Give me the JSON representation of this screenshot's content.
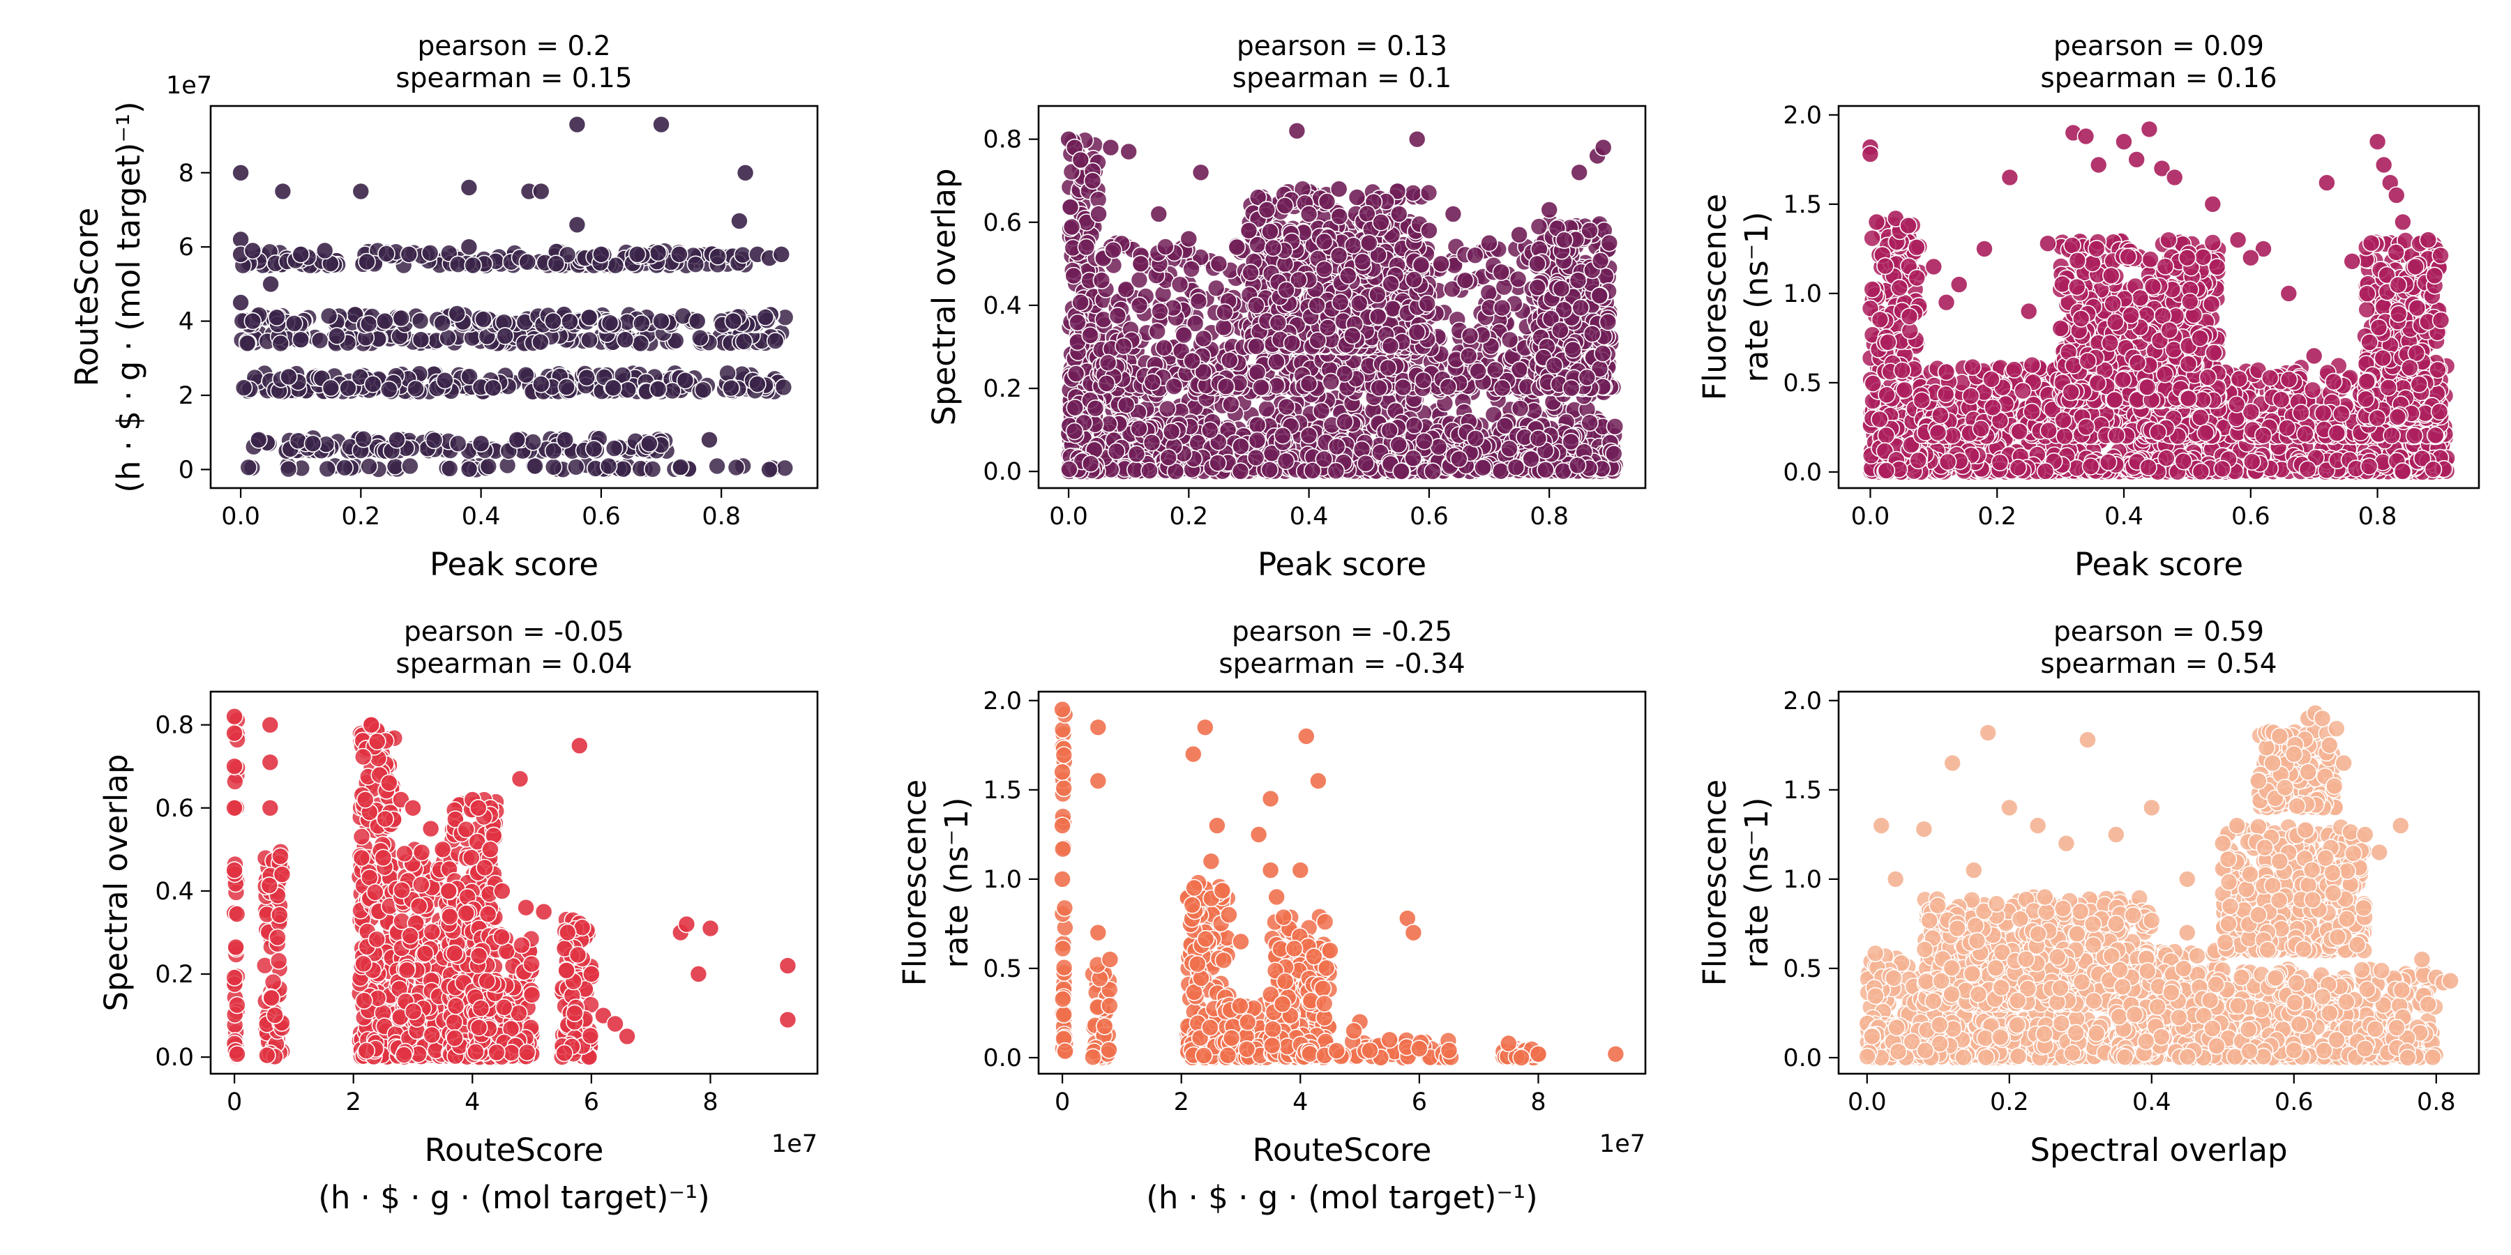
{
  "chart_data": [
    {
      "type": "scatter",
      "title": [
        "pearson = 0.2",
        "spearman = 0.15"
      ],
      "xlabel": [
        "Peak score"
      ],
      "ylabel": [
        "RouteScore",
        "(h · $ · g · (mol target)⁻¹)"
      ],
      "xlim": [
        -0.05,
        0.96
      ],
      "ylim": [
        -0.5,
        9.8
      ],
      "x_ticks": [
        0.0,
        0.2,
        0.4,
        0.6,
        0.8
      ],
      "x_tick_labels": [
        "0.0",
        "0.2",
        "0.4",
        "0.6",
        "0.8"
      ],
      "y_ticks": [
        0,
        2,
        4,
        6,
        8
      ],
      "y_tick_labels": [
        "0",
        "2",
        "4",
        "6",
        "8"
      ],
      "y_offset_label": "1e7",
      "x_offset_label": "",
      "grid": false,
      "color": "#3b2449",
      "points": {
        "x": [
          0.0,
          0.0,
          0.0,
          0.02,
          0.05,
          0.07,
          0.1,
          0.14,
          0.2,
          0.21,
          0.28,
          0.38,
          0.38,
          0.48,
          0.5,
          0.56,
          0.56,
          0.6,
          0.66,
          0.7,
          0.73,
          0.84,
          0.83,
          0.86,
          0.88,
          0.9,
          0.02,
          0.06,
          0.1,
          0.16,
          0.24,
          0.3,
          0.36,
          0.44,
          0.52,
          0.58,
          0.64,
          0.7,
          0.76,
          0.82,
          0.0,
          0.08,
          0.15,
          0.22,
          0.34,
          0.42,
          0.5,
          0.62,
          0.74,
          0.86,
          0.03,
          0.12,
          0.26,
          0.4,
          0.46,
          0.54,
          0.68,
          0.78,
          0.88
        ],
        "y": [
          8.0,
          6.2,
          5.8,
          5.9,
          5.0,
          7.5,
          5.8,
          5.9,
          7.5,
          5.6,
          5.8,
          7.6,
          6.0,
          7.5,
          7.5,
          9.3,
          6.6,
          5.8,
          5.8,
          9.3,
          5.8,
          8.0,
          6.7,
          5.8,
          5.7,
          5.8,
          4.0,
          4.1,
          3.5,
          3.6,
          4.0,
          3.5,
          4.2,
          3.6,
          4.0,
          4.1,
          3.5,
          4.0,
          4.0,
          4.0,
          4.5,
          2.5,
          2.2,
          2.3,
          2.4,
          2.2,
          2.3,
          2.2,
          2.4,
          2.3,
          0.8,
          0.7,
          0.8,
          0.7,
          0.8,
          0.8,
          0.7,
          0.8,
          0.0
        ],
        "bands": [
          [
            0.0,
            0.91,
            0.0,
            0.12
          ],
          [
            0.0,
            0.91,
            2.1,
            2.6
          ],
          [
            0.0,
            0.91,
            3.4,
            3.7
          ],
          [
            0.0,
            0.91,
            3.9,
            4.2
          ],
          [
            0.0,
            0.84,
            5.5,
            5.9
          ],
          [
            0.0,
            0.72,
            0.5,
            0.85
          ]
        ]
      }
    },
    {
      "type": "scatter",
      "title": [
        "pearson = 0.13",
        "spearman = 0.1"
      ],
      "xlabel": [
        "Peak score"
      ],
      "ylabel": [
        "Spectral overlap"
      ],
      "xlim": [
        -0.05,
        0.96
      ],
      "ylim": [
        -0.04,
        0.88
      ],
      "x_ticks": [
        0.0,
        0.2,
        0.4,
        0.6,
        0.8
      ],
      "x_tick_labels": [
        "0.0",
        "0.2",
        "0.4",
        "0.6",
        "0.8"
      ],
      "y_ticks": [
        0.0,
        0.2,
        0.4,
        0.6,
        0.8
      ],
      "y_tick_labels": [
        "0.0",
        "0.2",
        "0.4",
        "0.6",
        "0.8"
      ],
      "y_offset_label": "",
      "x_offset_label": "",
      "grid": false,
      "color": "#701f57",
      "points": {
        "x": [
          0.0,
          0.01,
          0.02,
          0.04,
          0.07,
          0.1,
          0.15,
          0.22,
          0.3,
          0.33,
          0.36,
          0.38,
          0.4,
          0.43,
          0.45,
          0.48,
          0.5,
          0.52,
          0.55,
          0.58,
          0.6,
          0.64,
          0.7,
          0.75,
          0.8,
          0.85,
          0.88,
          0.89,
          0.9,
          0.2,
          0.25,
          0.28,
          0.45,
          0.62,
          0.66,
          0.72,
          0.78,
          0.82,
          0.12,
          0.05
        ],
        "y": [
          0.8,
          0.78,
          0.75,
          0.7,
          0.78,
          0.77,
          0.62,
          0.72,
          0.58,
          0.63,
          0.64,
          0.82,
          0.62,
          0.65,
          0.68,
          0.66,
          0.55,
          0.6,
          0.62,
          0.8,
          0.58,
          0.62,
          0.55,
          0.57,
          0.63,
          0.72,
          0.76,
          0.78,
          0.55,
          0.56,
          0.5,
          0.54,
          0.52,
          0.5,
          0.46,
          0.48,
          0.5,
          0.44,
          0.5,
          0.62
        ],
        "bands": [
          [
            0.0,
            0.91,
            0.0,
            0.3
          ],
          [
            0.0,
            0.91,
            0.0,
            0.12
          ],
          [
            0.0,
            0.05,
            0.0,
            0.8
          ],
          [
            0.05,
            0.91,
            0.2,
            0.55
          ],
          [
            0.3,
            0.6,
            0.3,
            0.68
          ],
          [
            0.78,
            0.9,
            0.2,
            0.6
          ]
        ]
      }
    },
    {
      "type": "scatter",
      "title": [
        "pearson = 0.09",
        "spearman = 0.16"
      ],
      "xlabel": [
        "Peak score"
      ],
      "ylabel": [
        "Fluorescence",
        "rate (ns⁻1)"
      ],
      "xlim": [
        -0.05,
        0.96
      ],
      "ylim": [
        -0.09,
        2.05
      ],
      "x_ticks": [
        0.0,
        0.2,
        0.4,
        0.6,
        0.8
      ],
      "x_tick_labels": [
        "0.0",
        "0.2",
        "0.4",
        "0.6",
        "0.8"
      ],
      "y_ticks": [
        0.0,
        0.5,
        1.0,
        1.5,
        2.0
      ],
      "y_tick_labels": [
        "0.0",
        "0.5",
        "1.0",
        "1.5",
        "2.0"
      ],
      "y_offset_label": "",
      "x_offset_label": "",
      "grid": false,
      "color": "#ab1f5d",
      "points": {
        "x": [
          0.0,
          0.0,
          0.01,
          0.04,
          0.06,
          0.1,
          0.14,
          0.18,
          0.22,
          0.28,
          0.32,
          0.34,
          0.36,
          0.4,
          0.42,
          0.44,
          0.46,
          0.48,
          0.5,
          0.54,
          0.58,
          0.62,
          0.66,
          0.72,
          0.76,
          0.8,
          0.81,
          0.82,
          0.83,
          0.84,
          0.88,
          0.89,
          0.9,
          0.38,
          0.52,
          0.6,
          0.7,
          0.25,
          0.12,
          0.86
        ],
        "y": [
          1.82,
          1.78,
          1.4,
          1.42,
          1.38,
          1.15,
          1.05,
          1.25,
          1.65,
          1.28,
          1.9,
          1.88,
          1.72,
          1.85,
          1.75,
          1.92,
          1.7,
          1.65,
          1.2,
          1.5,
          1.3,
          1.25,
          1.0,
          1.62,
          1.18,
          1.85,
          1.72,
          1.62,
          1.55,
          1.4,
          1.3,
          1.1,
          0.85,
          1.1,
          0.75,
          1.2,
          0.65,
          0.9,
          0.95,
          1.15
        ],
        "bands": [
          [
            0.0,
            0.91,
            0.0,
            0.35
          ],
          [
            0.0,
            0.91,
            0.0,
            0.1
          ],
          [
            0.0,
            0.08,
            0.0,
            1.4
          ],
          [
            0.08,
            0.91,
            0.2,
            0.6
          ],
          [
            0.3,
            0.55,
            0.4,
            1.3
          ],
          [
            0.78,
            0.9,
            0.3,
            1.3
          ]
        ]
      }
    },
    {
      "type": "scatter",
      "title": [
        "pearson = -0.05",
        "spearman = 0.04"
      ],
      "xlabel": [
        "RouteScore",
        "(h · $ · g · (mol target)⁻¹)"
      ],
      "ylabel": [
        "Spectral overlap"
      ],
      "xlim": [
        -0.4,
        9.8
      ],
      "ylim": [
        -0.04,
        0.88
      ],
      "x_ticks": [
        0,
        2,
        4,
        6,
        8
      ],
      "x_tick_labels": [
        "0",
        "2",
        "4",
        "6",
        "8"
      ],
      "y_ticks": [
        0.0,
        0.2,
        0.4,
        0.6,
        0.8
      ],
      "y_tick_labels": [
        "0.0",
        "0.2",
        "0.4",
        "0.6",
        "0.8"
      ],
      "y_offset_label": "",
      "x_offset_label": "1e7",
      "grid": false,
      "color": "#e13342",
      "points": {
        "x": [
          0.0,
          0.0,
          0.0,
          0.0,
          0.6,
          0.6,
          0.6,
          0.8,
          2.2,
          2.3,
          2.4,
          2.6,
          2.8,
          3.0,
          3.3,
          3.5,
          3.6,
          4.0,
          4.1,
          4.3,
          4.5,
          4.8,
          5.2,
          5.6,
          5.8,
          6.0,
          6.2,
          6.6,
          7.5,
          7.6,
          7.8,
          8.0,
          9.3,
          9.3,
          4.9,
          2.5,
          3.7,
          5.0,
          6.4,
          0.0
        ],
        "y": [
          0.82,
          0.78,
          0.7,
          0.6,
          0.8,
          0.71,
          0.6,
          0.44,
          0.62,
          0.8,
          0.76,
          0.66,
          0.62,
          0.6,
          0.55,
          0.5,
          0.4,
          0.62,
          0.6,
          0.5,
          0.4,
          0.67,
          0.35,
          0.3,
          0.75,
          0.2,
          0.1,
          0.05,
          0.3,
          0.32,
          0.2,
          0.31,
          0.22,
          0.09,
          0.36,
          0.48,
          0.25,
          0.15,
          0.08,
          0.45
        ],
        "bands": [
          [
            0.0,
            0.05,
            0.0,
            0.82
          ],
          [
            0.5,
            0.8,
            0.0,
            0.5
          ],
          [
            2.1,
            2.7,
            0.0,
            0.8
          ],
          [
            2.7,
            3.6,
            0.0,
            0.5
          ],
          [
            3.6,
            4.4,
            0.0,
            0.62
          ],
          [
            4.0,
            5.0,
            0.0,
            0.3
          ],
          [
            5.5,
            6.0,
            0.0,
            0.35
          ]
        ]
      }
    },
    {
      "type": "scatter",
      "title": [
        "pearson = -0.25",
        "spearman = -0.34"
      ],
      "xlabel": [
        "RouteScore",
        "(h · $ · g · (mol target)⁻¹)"
      ],
      "ylabel": [
        "Fluorescence",
        "rate (ns⁻1)"
      ],
      "xlim": [
        -0.4,
        9.8
      ],
      "ylim": [
        -0.09,
        2.05
      ],
      "x_ticks": [
        0,
        2,
        4,
        6,
        8
      ],
      "x_tick_labels": [
        "0",
        "2",
        "4",
        "6",
        "8"
      ],
      "y_ticks": [
        0.0,
        0.5,
        1.0,
        1.5,
        2.0
      ],
      "y_tick_labels": [
        "0.0",
        "0.5",
        "1.0",
        "1.5",
        "2.0"
      ],
      "y_offset_label": "",
      "x_offset_label": "1e7",
      "grid": false,
      "color": "#f0704c",
      "points": {
        "x": [
          0.0,
          0.0,
          0.0,
          0.6,
          0.6,
          0.6,
          0.8,
          2.2,
          2.4,
          2.6,
          2.8,
          3.0,
          3.3,
          3.5,
          3.5,
          3.6,
          4.0,
          4.1,
          4.3,
          4.5,
          5.0,
          5.5,
          5.8,
          5.9,
          6.0,
          6.5,
          7.5,
          8.0,
          9.3,
          4.9,
          2.5,
          3.7,
          0.0
        ],
        "y": [
          1.95,
          1.6,
          1.3,
          1.85,
          1.55,
          0.7,
          0.55,
          1.7,
          1.85,
          1.3,
          0.8,
          0.65,
          1.25,
          1.45,
          1.05,
          0.9,
          1.05,
          1.8,
          1.55,
          0.6,
          0.2,
          0.1,
          0.78,
          0.7,
          0.05,
          0.04,
          0.08,
          0.02,
          0.02,
          0.15,
          1.1,
          0.3,
          1.0
        ],
        "bands": [
          [
            0.0,
            0.05,
            0.0,
            1.95
          ],
          [
            0.5,
            0.8,
            0.0,
            0.6
          ],
          [
            2.1,
            2.8,
            0.0,
            1.0
          ],
          [
            2.7,
            3.5,
            0.0,
            0.3
          ],
          [
            3.5,
            4.5,
            0.0,
            0.8
          ],
          [
            4.0,
            6.6,
            0.0,
            0.1
          ],
          [
            7.4,
            8.0,
            0.0,
            0.05
          ]
        ]
      }
    },
    {
      "type": "scatter",
      "title": [
        "pearson = 0.59",
        "spearman = 0.54"
      ],
      "xlabel": [
        "Spectral overlap"
      ],
      "ylabel": [
        "Fluorescence",
        "rate (ns⁻1)"
      ],
      "xlim": [
        -0.04,
        0.86
      ],
      "ylim": [
        -0.09,
        2.05
      ],
      "x_ticks": [
        0.0,
        0.2,
        0.4,
        0.6,
        0.8
      ],
      "x_tick_labels": [
        "0.0",
        "0.2",
        "0.4",
        "0.6",
        "0.8"
      ],
      "y_ticks": [
        0.0,
        0.5,
        1.0,
        1.5,
        2.0
      ],
      "y_tick_labels": [
        "0.0",
        "0.5",
        "1.0",
        "1.5",
        "2.0"
      ],
      "y_offset_label": "",
      "x_offset_label": "",
      "grid": false,
      "color": "#f4b393",
      "points": {
        "x": [
          0.02,
          0.04,
          0.08,
          0.12,
          0.17,
          0.2,
          0.24,
          0.28,
          0.31,
          0.35,
          0.4,
          0.45,
          0.5,
          0.55,
          0.57,
          0.58,
          0.6,
          0.62,
          0.63,
          0.64,
          0.65,
          0.67,
          0.7,
          0.72,
          0.75,
          0.78,
          0.8,
          0.81,
          0.82,
          0.76,
          0.7,
          0.66,
          0.55,
          0.45,
          0.35,
          0.15,
          0.25,
          0.52,
          0.62,
          0.58
        ],
        "y": [
          1.3,
          1.0,
          1.28,
          1.65,
          1.82,
          1.4,
          1.3,
          1.2,
          1.78,
          1.25,
          1.4,
          1.0,
          1.2,
          1.55,
          1.65,
          1.8,
          1.7,
          1.9,
          1.93,
          1.9,
          1.75,
          1.65,
          1.25,
          1.15,
          1.3,
          0.55,
          0.45,
          0.42,
          0.43,
          0.0,
          0.05,
          0.1,
          0.8,
          0.7,
          0.75,
          1.05,
          0.9,
          1.3,
          1.6,
          1.1
        ],
        "bands": [
          [
            0.0,
            0.5,
            0.0,
            0.6
          ],
          [
            0.0,
            0.3,
            0.0,
            0.2
          ],
          [
            0.08,
            0.4,
            0.3,
            0.9
          ],
          [
            0.5,
            0.7,
            0.6,
            1.3
          ],
          [
            0.55,
            0.66,
            1.4,
            1.85
          ],
          [
            0.35,
            0.8,
            0.0,
            0.5
          ]
        ]
      }
    }
  ]
}
